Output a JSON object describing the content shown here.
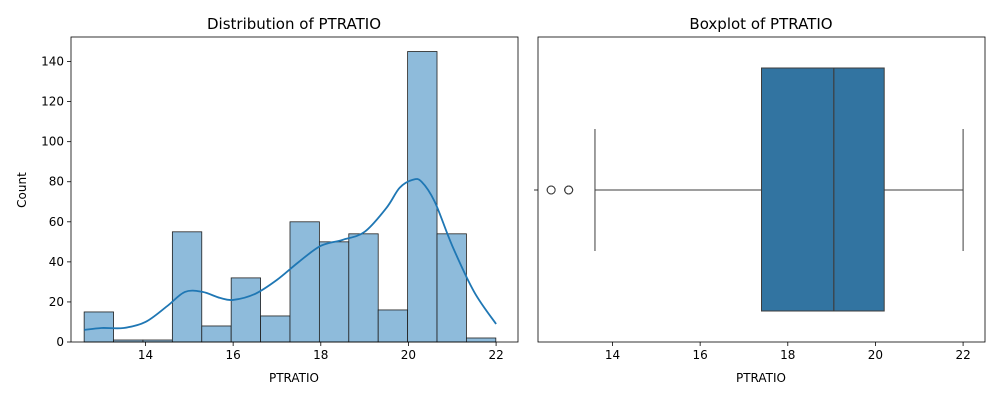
{
  "colors": {
    "hist_fill": "#8ebbdb",
    "hist_edge": "#1f1f1f",
    "kde_line": "#1f77b4",
    "box_fill": "#3274a1",
    "box_line": "#3d3d3d"
  },
  "chart_data": [
    {
      "type": "histogram",
      "title": "Distribution of PTRATIO",
      "xlabel": "PTRATIO",
      "ylabel": "Count",
      "xlim": [
        12.3,
        22.5
      ],
      "ylim": [
        0,
        152.25
      ],
      "xticks": [
        14,
        16,
        18,
        20,
        22
      ],
      "yticks": [
        0,
        20,
        40,
        60,
        80,
        100,
        120,
        140
      ],
      "bin_start": 12.6,
      "bin_width": 0.671,
      "bin_counts": [
        15,
        1,
        1,
        55,
        8,
        32,
        13,
        60,
        50,
        54,
        16,
        145,
        54,
        2
      ],
      "kde": {
        "x": [
          12.6,
          13.0,
          13.5,
          14.0,
          14.5,
          14.9,
          15.3,
          15.7,
          16.0,
          16.5,
          17.0,
          17.5,
          18.0,
          18.5,
          19.0,
          19.5,
          19.8,
          20.1,
          20.3,
          20.6,
          21.0,
          21.5,
          22.0
        ],
        "y": [
          6,
          7,
          7,
          10,
          18,
          25,
          25,
          22,
          21,
          24,
          31,
          40,
          48,
          51,
          55,
          67,
          77,
          81,
          80,
          70,
          48,
          25,
          9
        ]
      }
    },
    {
      "type": "boxplot",
      "title": "Boxplot of PTRATIO",
      "xlabel": "PTRATIO",
      "xlim": [
        12.3,
        22.5
      ],
      "xticks": [
        14,
        16,
        18,
        20,
        22
      ],
      "whisker_low": 13.6,
      "q1": 17.4,
      "median": 19.05,
      "q3": 20.2,
      "whisker_high": 22.0,
      "outliers": [
        12.6,
        12.6,
        13.0,
        13.0,
        13.0
      ]
    }
  ]
}
